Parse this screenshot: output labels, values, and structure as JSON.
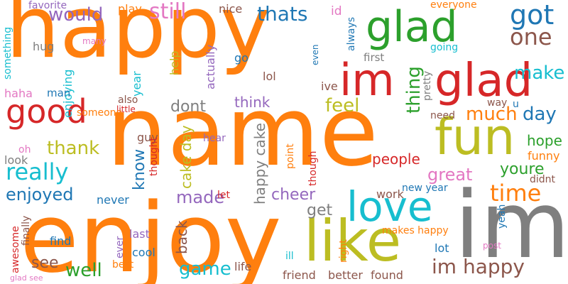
{
  "colors": {
    "orange": "#ff7f0e",
    "blue": "#1f77b4",
    "green": "#2ca02c",
    "red": "#d62728",
    "purple": "#9467bd",
    "brown": "#8c564b",
    "pink": "#e377c2",
    "gray": "#7f7f7f",
    "olive": "#bcbd22",
    "cyan": "#17becf"
  },
  "words": [
    {
      "text": "happy",
      "color": "orange",
      "vertical": false
    },
    {
      "text": "name",
      "color": "orange",
      "vertical": false
    },
    {
      "text": "enjoy",
      "color": "orange",
      "vertical": false
    },
    {
      "text": "im",
      "color": "gray",
      "vertical": false
    },
    {
      "text": "glad",
      "color": "green",
      "vertical": false
    },
    {
      "text": "im",
      "color": "red",
      "vertical": false
    },
    {
      "text": "glad",
      "color": "red",
      "vertical": false
    },
    {
      "text": "fun",
      "color": "olive",
      "vertical": false
    },
    {
      "text": "like",
      "color": "olive",
      "vertical": false
    },
    {
      "text": "love",
      "color": "cyan",
      "vertical": false
    },
    {
      "text": "good",
      "color": "red",
      "vertical": false
    },
    {
      "text": "really",
      "color": "cyan",
      "vertical": false
    },
    {
      "text": "got",
      "color": "blue",
      "vertical": false
    },
    {
      "text": "one",
      "color": "brown",
      "vertical": false
    },
    {
      "text": "would",
      "color": "purple",
      "vertical": false
    },
    {
      "text": "still",
      "color": "pink",
      "vertical": false
    },
    {
      "text": "thats",
      "color": "blue",
      "vertical": false
    },
    {
      "text": "make",
      "color": "cyan",
      "vertical": false
    },
    {
      "text": "thing",
      "color": "green",
      "vertical": true
    },
    {
      "text": "much",
      "color": "orange",
      "vertical": false
    },
    {
      "text": "day",
      "color": "blue",
      "vertical": false
    },
    {
      "text": "feel",
      "color": "olive",
      "vertical": false
    },
    {
      "text": "thank",
      "color": "olive",
      "vertical": false
    },
    {
      "text": "dont",
      "color": "gray",
      "vertical": false
    },
    {
      "text": "think",
      "color": "purple",
      "vertical": false
    },
    {
      "text": "time",
      "color": "orange",
      "vertical": false
    },
    {
      "text": "great",
      "color": "pink",
      "vertical": false
    },
    {
      "text": "youre",
      "color": "green",
      "vertical": false
    },
    {
      "text": "hope",
      "color": "green",
      "vertical": false
    },
    {
      "text": "enjoyed",
      "color": "blue",
      "vertical": false
    },
    {
      "text": "made",
      "color": "purple",
      "vertical": false
    },
    {
      "text": "cheer",
      "color": "purple",
      "vertical": false
    },
    {
      "text": "get",
      "color": "gray",
      "vertical": false
    },
    {
      "text": "people",
      "color": "red",
      "vertical": false
    },
    {
      "text": "im happy",
      "color": "brown",
      "vertical": false
    },
    {
      "text": "see",
      "color": "brown",
      "vertical": false
    },
    {
      "text": "well",
      "color": "green",
      "vertical": false
    },
    {
      "text": "game",
      "color": "cyan",
      "vertical": false
    },
    {
      "text": "know",
      "color": "blue",
      "vertical": true
    },
    {
      "text": "happy cake",
      "color": "gray",
      "vertical": true
    },
    {
      "text": "cake day",
      "color": "olive",
      "vertical": true
    },
    {
      "text": "back",
      "color": "brown",
      "vertical": true
    },
    {
      "text": "year",
      "color": "cyan",
      "vertical": true
    },
    {
      "text": "favorite",
      "color": "purple",
      "vertical": false
    },
    {
      "text": "play",
      "color": "orange",
      "vertical": false
    },
    {
      "text": "nice",
      "color": "brown",
      "vertical": false
    },
    {
      "text": "id",
      "color": "pink",
      "vertical": false
    },
    {
      "text": "everyone",
      "color": "orange",
      "vertical": false
    },
    {
      "text": "something",
      "color": "cyan",
      "vertical": true
    },
    {
      "text": "hug",
      "color": "gray",
      "vertical": false
    },
    {
      "text": "many",
      "color": "pink",
      "vertical": false
    },
    {
      "text": "enjoying",
      "color": "cyan",
      "vertical": true
    },
    {
      "text": "help",
      "color": "olive",
      "vertical": true
    },
    {
      "text": "actually",
      "color": "purple",
      "vertical": true
    },
    {
      "text": "go",
      "color": "blue",
      "vertical": false
    },
    {
      "text": "even",
      "color": "blue",
      "vertical": true
    },
    {
      "text": "always",
      "color": "blue",
      "vertical": true
    },
    {
      "text": "going",
      "color": "cyan",
      "vertical": false
    },
    {
      "text": "first",
      "color": "gray",
      "vertical": false
    },
    {
      "text": "lol",
      "color": "brown",
      "vertical": false
    },
    {
      "text": "ive",
      "color": "brown",
      "vertical": false
    },
    {
      "text": "pretty",
      "color": "gray",
      "vertical": true
    },
    {
      "text": "haha",
      "color": "pink",
      "vertical": false
    },
    {
      "text": "man",
      "color": "blue",
      "vertical": false
    },
    {
      "text": "also",
      "color": "brown",
      "vertical": false
    },
    {
      "text": "little",
      "color": "red",
      "vertical": false
    },
    {
      "text": "way",
      "color": "brown",
      "vertical": false
    },
    {
      "text": "u",
      "color": "blue",
      "vertical": false
    },
    {
      "text": "need",
      "color": "brown",
      "vertical": false
    },
    {
      "text": "someone",
      "color": "orange",
      "vertical": false
    },
    {
      "text": "guy",
      "color": "brown",
      "vertical": false
    },
    {
      "text": "thought",
      "color": "red",
      "vertical": true
    },
    {
      "text": "hear",
      "color": "purple",
      "vertical": false
    },
    {
      "text": "point",
      "color": "orange",
      "vertical": true
    },
    {
      "text": "though",
      "color": "red",
      "vertical": true
    },
    {
      "text": "funny",
      "color": "orange",
      "vertical": false
    },
    {
      "text": "didnt",
      "color": "brown",
      "vertical": false
    },
    {
      "text": "look",
      "color": "gray",
      "vertical": false
    },
    {
      "text": "oh",
      "color": "pink",
      "vertical": false
    },
    {
      "text": "let",
      "color": "red",
      "vertical": false
    },
    {
      "text": "never",
      "color": "blue",
      "vertical": false
    },
    {
      "text": "work",
      "color": "brown",
      "vertical": false
    },
    {
      "text": "new year",
      "color": "blue",
      "vertical": false
    },
    {
      "text": "yeah",
      "color": "blue",
      "vertical": true
    },
    {
      "text": "awesome",
      "color": "red",
      "vertical": true
    },
    {
      "text": "finally",
      "color": "brown",
      "vertical": true
    },
    {
      "text": "find",
      "color": "blue",
      "vertical": false
    },
    {
      "text": "last",
      "color": "purple",
      "vertical": false
    },
    {
      "text": "ever",
      "color": "purple",
      "vertical": true
    },
    {
      "text": "cool",
      "color": "blue",
      "vertical": false
    },
    {
      "text": "best",
      "color": "orange",
      "vertical": false
    },
    {
      "text": "right",
      "color": "orange",
      "vertical": true
    },
    {
      "text": "ill",
      "color": "cyan",
      "vertical": false
    },
    {
      "text": "makes happy",
      "color": "orange",
      "vertical": false
    },
    {
      "text": "lot",
      "color": "blue",
      "vertical": false
    },
    {
      "text": "post",
      "color": "pink",
      "vertical": false
    },
    {
      "text": "life",
      "color": "brown",
      "vertical": false
    },
    {
      "text": "friend",
      "color": "brown",
      "vertical": false
    },
    {
      "text": "better",
      "color": "brown",
      "vertical": false
    },
    {
      "text": "found",
      "color": "brown",
      "vertical": false
    },
    {
      "text": "glad see",
      "color": "pink",
      "vertical": false
    }
  ]
}
